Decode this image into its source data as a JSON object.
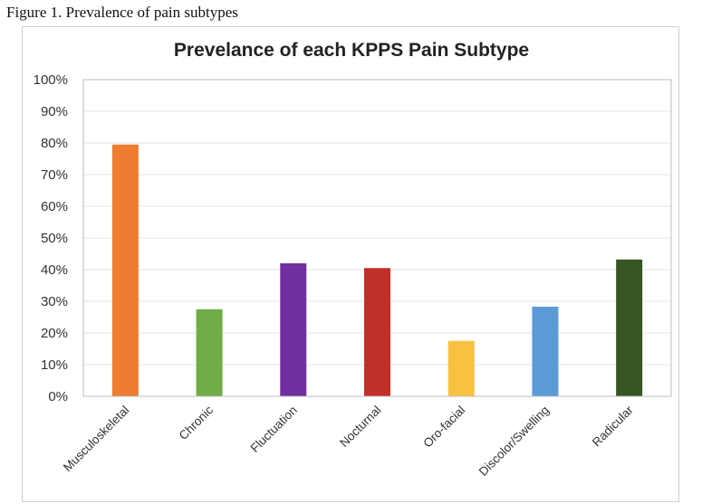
{
  "figure_caption": "Figure 1. Prevalence of pain subtypes",
  "chart_data": {
    "type": "bar",
    "title": "Prevelance of each KPPS Pain Subtype",
    "xlabel": "",
    "ylabel": "",
    "categories": [
      "Musculoskeletal",
      "Chronic",
      "Fluctuation",
      "Nocturnal",
      "Oro-facial",
      "Discolor/Swelling",
      "Radicular"
    ],
    "values": [
      79.5,
      27.5,
      42,
      40.5,
      17.5,
      28.3,
      43.2
    ],
    "colors": [
      "#ED7D31",
      "#70AD47",
      "#7030A0",
      "#C0302B",
      "#F8C142",
      "#5B9BD5",
      "#375623"
    ],
    "ylim": [
      0,
      100
    ],
    "yticks": [
      "0%",
      "10%",
      "20%",
      "30%",
      "40%",
      "50%",
      "60%",
      "70%",
      "80%",
      "90%",
      "100%"
    ],
    "grid": true,
    "legend": "none"
  }
}
